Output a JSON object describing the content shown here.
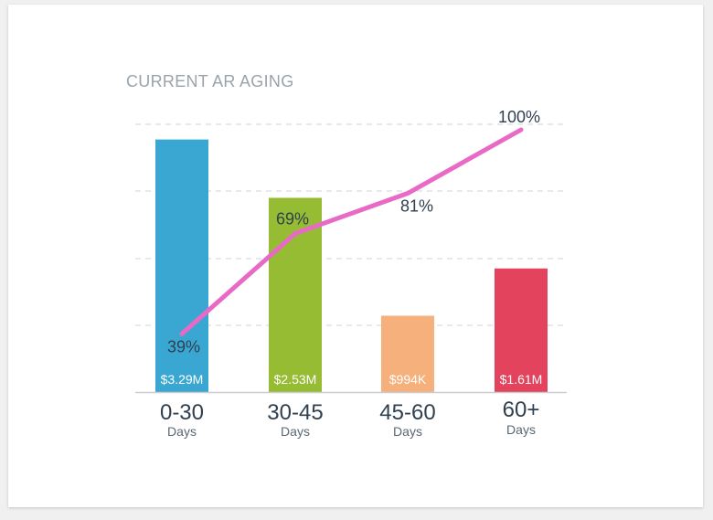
{
  "chart_data": {
    "type": "bar",
    "title": "CURRENT AR AGING",
    "categories": [
      "0-30",
      "30-45",
      "45-60",
      "60+"
    ],
    "category_sublabel": "Days",
    "series": [
      {
        "type": "bar",
        "values": [
          3290000,
          2530000,
          994000,
          1610000
        ],
        "value_labels": [
          "$3.29M",
          "$2.53M",
          "$994K",
          "$1.61M"
        ],
        "colors": [
          "#39a7d2",
          "#96bc33",
          "#f6b07b",
          "#e3435c"
        ]
      },
      {
        "type": "line",
        "values": [
          39,
          69,
          81,
          100
        ],
        "value_labels": [
          "39%",
          "69%",
          "81%",
          "100%"
        ],
        "color": "#e86ac6"
      }
    ],
    "bar_ylim": [
      0,
      4000000
    ],
    "line_ylim": [
      0,
      100
    ],
    "grid": true
  }
}
